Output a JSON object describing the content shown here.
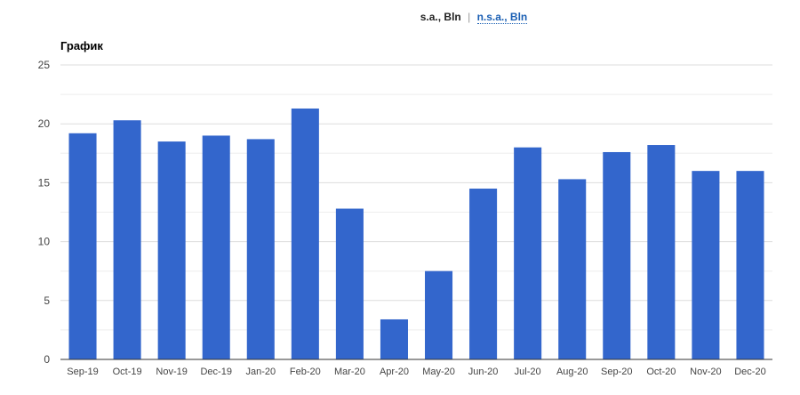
{
  "toggle": {
    "active_label": "s.a., Bln",
    "separator": "|",
    "alt_label": "n.s.a., Bln"
  },
  "chart_data": {
    "type": "bar",
    "title": "График",
    "xlabel": "",
    "ylabel": "",
    "categories": [
      "Sep-19",
      "Oct-19",
      "Nov-19",
      "Dec-19",
      "Jan-20",
      "Feb-20",
      "Mar-20",
      "Apr-20",
      "May-20",
      "Jun-20",
      "Jul-20",
      "Aug-20",
      "Sep-20",
      "Oct-20",
      "Nov-20",
      "Dec-20"
    ],
    "values": [
      19.2,
      20.3,
      18.5,
      19.0,
      18.7,
      21.3,
      12.8,
      3.4,
      7.5,
      14.5,
      18.0,
      15.3,
      17.6,
      18.2,
      16.0,
      16.0
    ],
    "ylim": [
      0,
      25
    ],
    "yticks": [
      0,
      5,
      10,
      15,
      20,
      25
    ],
    "grid": true,
    "colors": {
      "bar": "#3366cc",
      "grid": "#dddddd",
      "axis": "#333333",
      "tick_text": "#444444"
    }
  }
}
